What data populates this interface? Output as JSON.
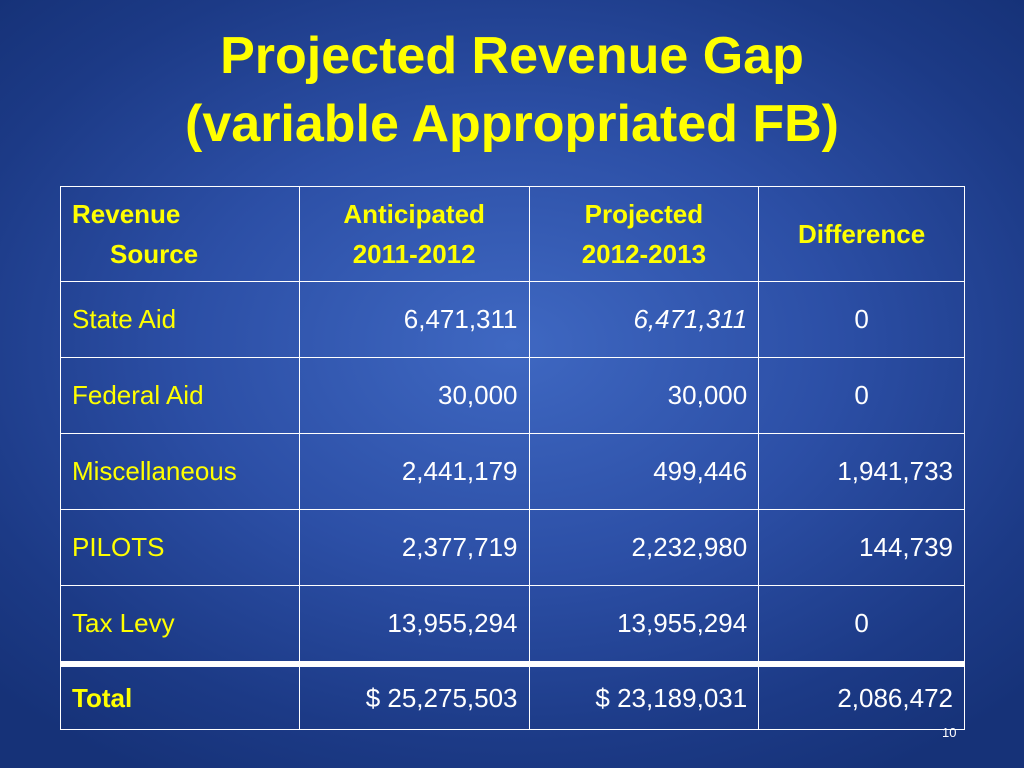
{
  "title": {
    "line1": "Projected Revenue Gap",
    "line2": "(variable Appropriated FB)"
  },
  "table": {
    "headers": {
      "source_l1": "Revenue",
      "source_l2": "Source",
      "anticipated_l1": "Anticipated",
      "anticipated_l2": "2011-2012",
      "projected_l1": "Projected",
      "projected_l2": "2012-2013",
      "difference": "Difference"
    },
    "rows": [
      {
        "source": "State Aid",
        "anticipated": "6,471,311",
        "projected": "6,471,311",
        "difference": "0"
      },
      {
        "source": "Federal Aid",
        "anticipated": "30,000",
        "projected": "30,000",
        "difference": "0"
      },
      {
        "source": "Miscellaneous",
        "anticipated": "2,441,179",
        "projected": "499,446",
        "difference": "1,941,733"
      },
      {
        "source": "PILOTS",
        "anticipated": "2,377,719",
        "projected": "2,232,980",
        "difference": "144,739"
      },
      {
        "source": "Tax Levy",
        "anticipated": "13,955,294",
        "projected": "13,955,294",
        "difference": "0"
      }
    ],
    "total": {
      "source": "Total",
      "anticipated": "$ 25,275,503",
      "projected": "$ 23,189,031",
      "difference": "2,086,472"
    }
  },
  "page_number": "10",
  "colors": {
    "title": "#ffff00",
    "label": "#ffff00",
    "value": "#ffffff",
    "background": "#2c4fa6"
  }
}
